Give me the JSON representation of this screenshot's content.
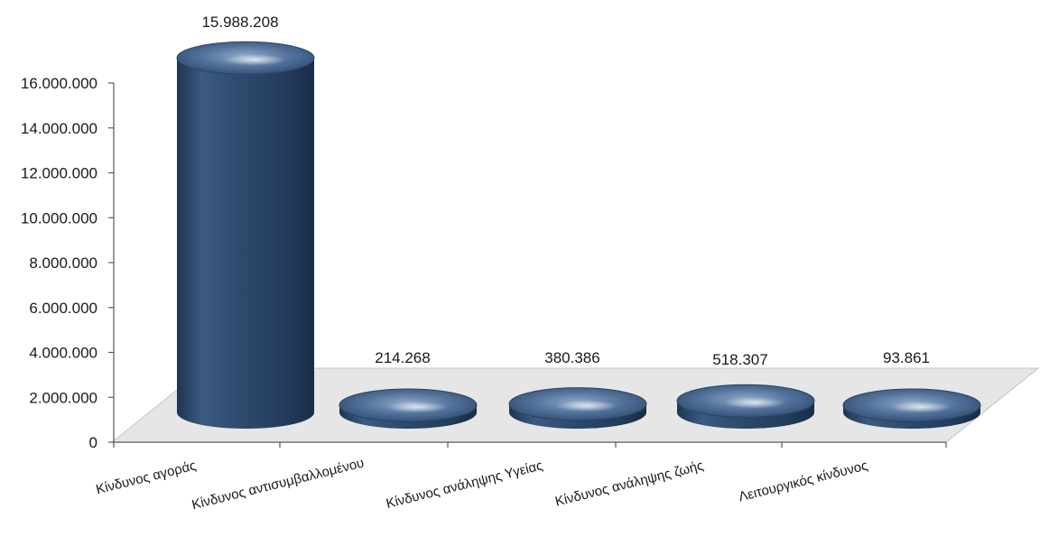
{
  "chart_data": {
    "type": "bar",
    "style": "3d-cylinder",
    "categories": [
      "Κίνδυνος αγοράς",
      "Κίνδυνος αντισυμβαλλομένου",
      "Κίνδυνος ανάληψης Υγείας",
      "Κίνδυνος ανάληψης ζωής",
      "Λειτουργικός κίνδυνος"
    ],
    "values": [
      15988208,
      214268,
      380386,
      518307,
      93861
    ],
    "data_labels": [
      "15.988.208",
      "214.268",
      "380.386",
      "518.307",
      "93.861"
    ],
    "ylim": [
      0,
      16000000
    ],
    "y_ticks": [
      0,
      2000000,
      4000000,
      6000000,
      8000000,
      10000000,
      12000000,
      14000000,
      16000000
    ],
    "y_tick_labels": [
      "0",
      "2.000.000",
      "4.000.000",
      "6.000.000",
      "8.000.000",
      "10.000.000",
      "12.000.000",
      "14.000.000",
      "16.000.000"
    ],
    "title": "",
    "xlabel": "",
    "ylabel": "",
    "grid": false,
    "legend": "none",
    "colors": {
      "bar": "#2e4a6e",
      "bar_highlight": "#8fa9c9",
      "floor": "#e6e6e6",
      "floor_edge": "#c4c4c4",
      "axis": "#595959"
    }
  }
}
